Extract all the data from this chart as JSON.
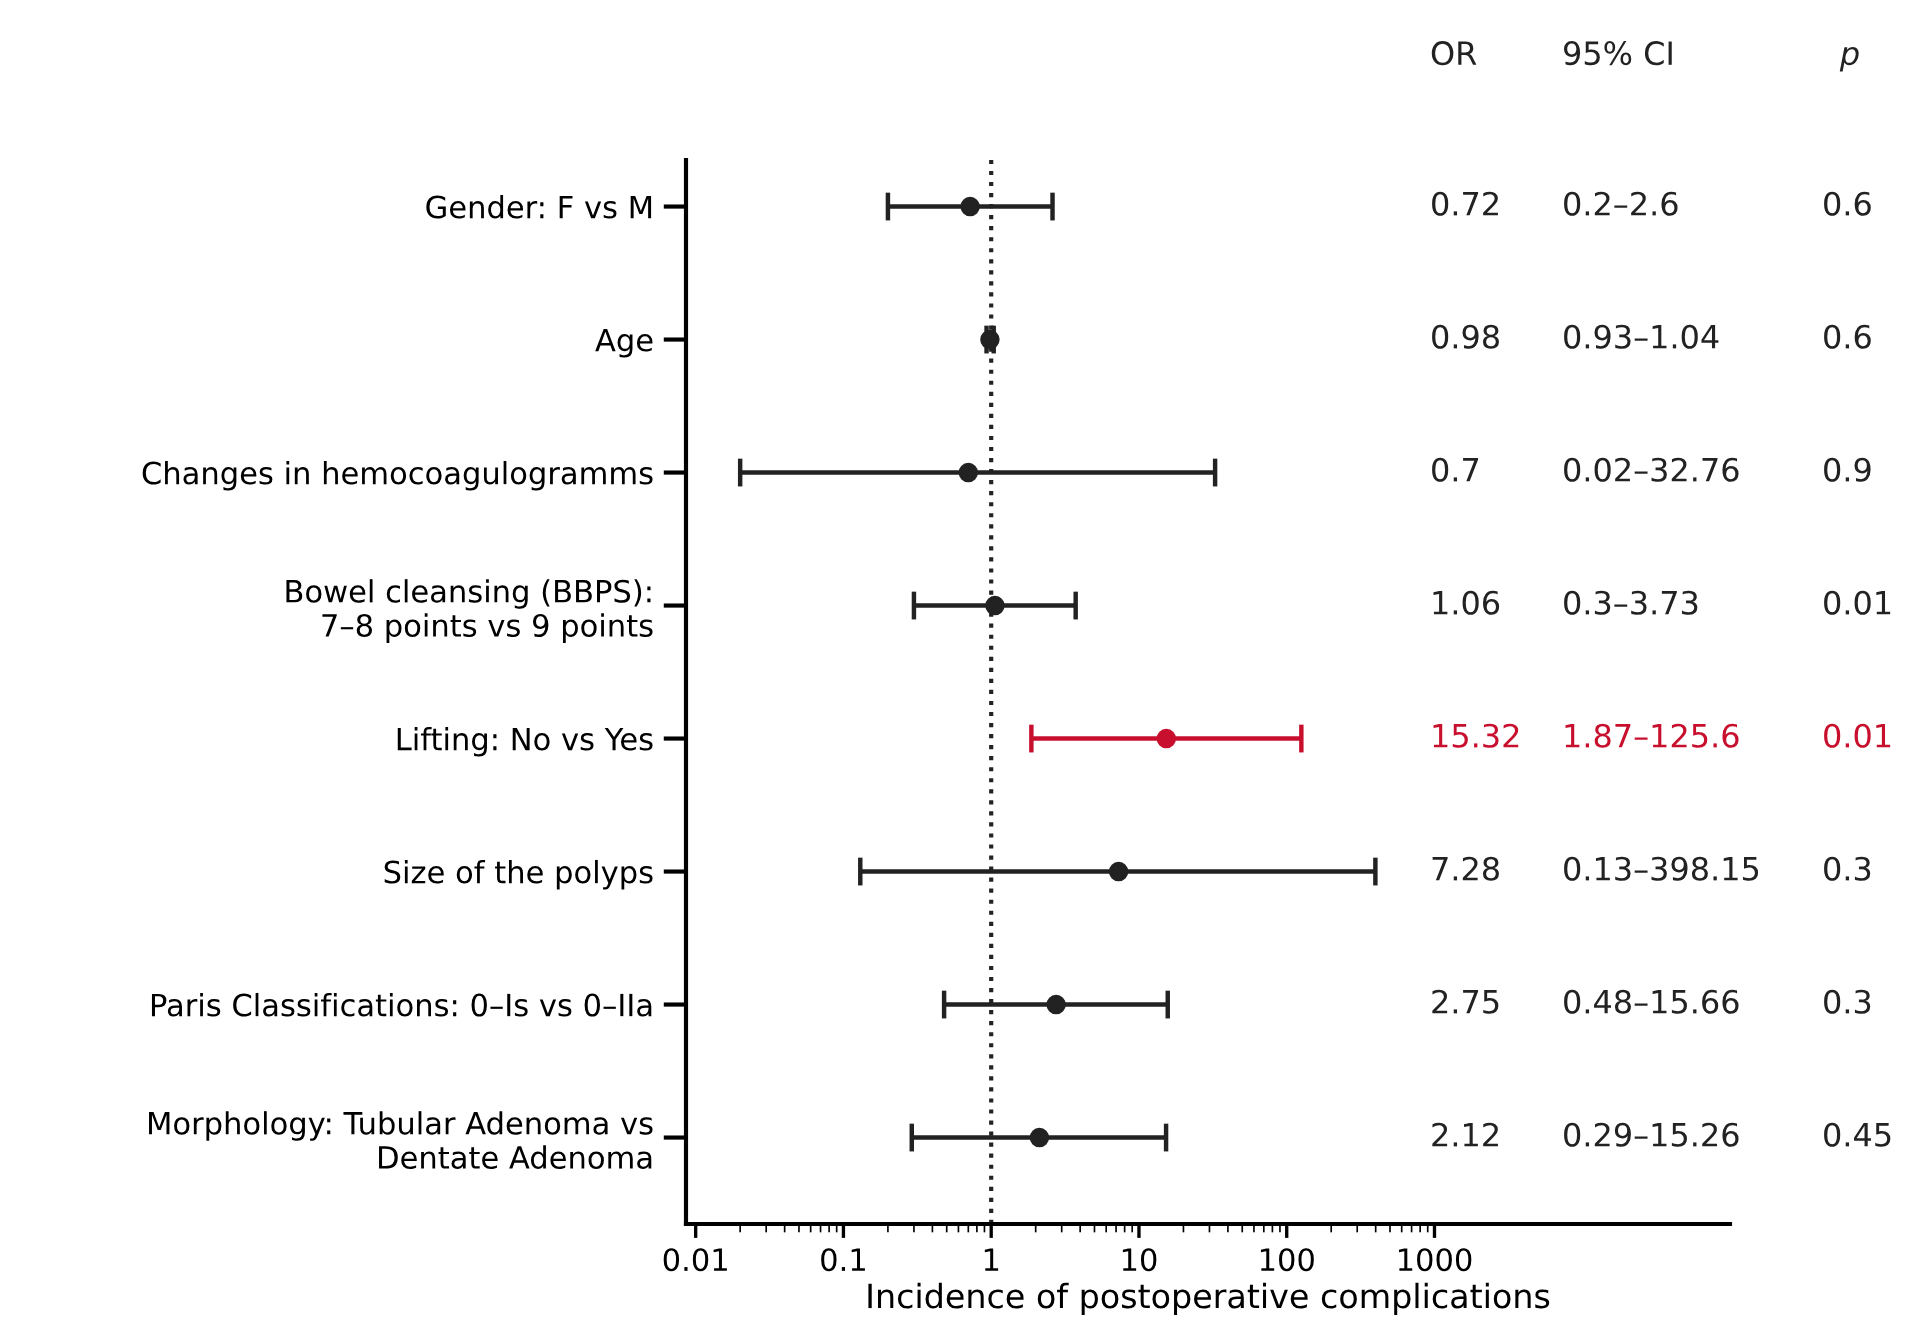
{
  "chart_data": {
    "type": "scatter",
    "orientation": "horizontal",
    "xlabel": "Incidence of postoperative complications",
    "categories": [
      "Gender: F vs M",
      "Age",
      "Changes in hemocoagulogramms",
      "Bowel cleansing (BBPS):\n7–8 points vs 9 points",
      "Lifting: No vs Yes",
      "Size of the polyps",
      "Paris Classifications: 0–Is vs 0–IIa",
      "Morphology: Tubular Adenoma vs\nDentate Adenoma"
    ],
    "values": [
      0.72,
      0.98,
      0.7,
      1.06,
      15.32,
      7.28,
      2.75,
      2.12
    ],
    "errors": [
      [
        0.2,
        2.6
      ],
      [
        0.93,
        1.04
      ],
      [
        0.02,
        32.76
      ],
      [
        0.3,
        3.73
      ],
      [
        1.87,
        125.6
      ],
      [
        0.13,
        398.15
      ],
      [
        0.48,
        15.66
      ],
      [
        0.29,
        15.26
      ]
    ],
    "colors": [
      "#222222",
      "#222222",
      "#222222",
      "#222222",
      "#c8102e",
      "#222222",
      "#222222",
      "#222222"
    ],
    "annotations": [
      "OR",
      "95% CI",
      "p",
      "0.72",
      "0.2–2.6",
      "0.6",
      "0.98",
      "0.93–1.04",
      "0.6",
      "0.7",
      "0.02–32.76",
      "0.9",
      "1.06",
      "0.3–3.73",
      "0.01",
      "15.32",
      "1.87–125.6",
      "0.01",
      "7.28",
      "0.13–398.15",
      "0.3",
      "2.75",
      "0.48–15.66",
      "0.3",
      "2.12",
      "0.29–15.26",
      "0.45"
    ],
    "log": "x",
    "xlim": [
      0.0086,
      100000
    ],
    "xticks": [
      0.01,
      0.1,
      1,
      10,
      100,
      1000
    ],
    "ref_lines": [
      {
        "axis": "x",
        "value": 1,
        "line_style": "dotted",
        "color": "#222222"
      }
    ],
    "marker": "circle",
    "grid": false,
    "legend": false
  }
}
